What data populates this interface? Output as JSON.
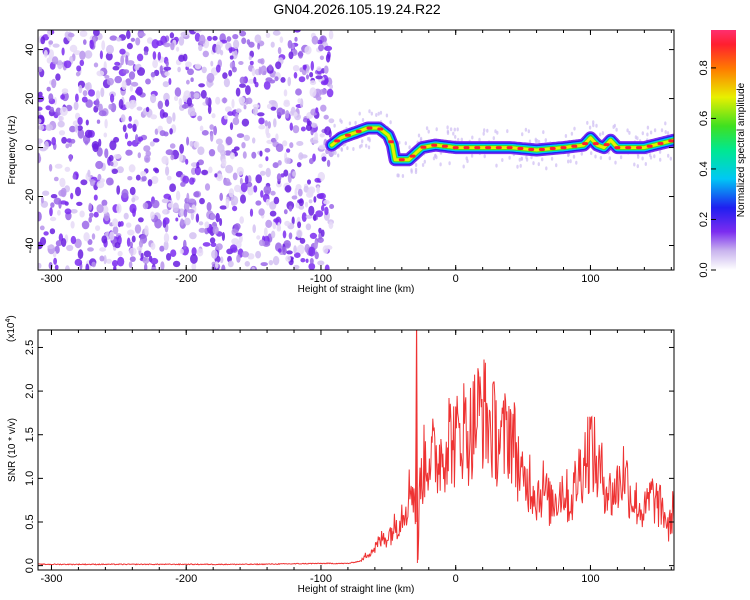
{
  "title": "GN04.2026.105.19.24.R22",
  "chart_data": [
    {
      "type": "heatmap",
      "xlabel": "Height of straight line (km)",
      "ylabel": "Frequency (Hz)",
      "xlim": [
        -310,
        162
      ],
      "ylim": [
        -50,
        48
      ],
      "xticks": [
        -300,
        -200,
        -100,
        0,
        100
      ],
      "yticks": [
        -40,
        -20,
        0,
        20,
        40
      ],
      "colorbar": {
        "label": "Normalized spectral amplitude",
        "range": [
          0,
          0.95
        ],
        "ticks": [
          "0.0",
          "0.2",
          "0.4",
          "0.6",
          "0.8"
        ],
        "colors": [
          "#ffffff",
          "#c9b4ee",
          "#7b2cf0",
          "#1f1ff0",
          "#00c8f5",
          "#00e890",
          "#3fe020",
          "#e8f000",
          "#ff7a00",
          "#ff1f2f",
          "#ff2f6f"
        ]
      },
      "noise_region_x": [
        -310,
        -92
      ],
      "ridge": {
        "x": [
          -92,
          -85,
          -75,
          -65,
          -57,
          -50,
          -47,
          -45,
          -35,
          -25,
          -15,
          0,
          20,
          40,
          60,
          80,
          95,
          100,
          105,
          110,
          115,
          120,
          140,
          162
        ],
        "freq": [
          1,
          4,
          6,
          8,
          8,
          5,
          1,
          -5,
          -5,
          0,
          1,
          0,
          0,
          0,
          -1,
          0,
          1,
          4,
          1,
          0,
          3,
          0,
          0,
          3
        ]
      }
    },
    {
      "type": "line",
      "xlabel": "Height of straight line (km)",
      "ylabel": "SNR (10 * v/v)",
      "scale_label": "(x10",
      "scale_exp": "4",
      "xlim": [
        -310,
        162
      ],
      "ylim": [
        -0.05,
        2.7
      ],
      "xticks": [
        -300,
        -200,
        -100,
        0,
        100
      ],
      "yticks": [
        "0.0",
        "0.5",
        "1.0",
        "1.5",
        "2.0",
        "2.5"
      ],
      "ytick_values": [
        0,
        0.5,
        1.0,
        1.5,
        2.0,
        2.5
      ],
      "series": [
        {
          "color": "#ee3333",
          "x": [
            -310,
            -250,
            -200,
            -150,
            -100,
            -80,
            -70,
            -65,
            -60,
            -55,
            -50,
            -45,
            -40,
            -35,
            -32,
            -30,
            -29,
            -28,
            -27,
            -25,
            -20,
            -15,
            -10,
            -5,
            0,
            5,
            10,
            15,
            20,
            25,
            30,
            35,
            40,
            45,
            50,
            55,
            60,
            65,
            70,
            75,
            80,
            85,
            90,
            95,
            100,
            105,
            110,
            115,
            120,
            125,
            130,
            135,
            140,
            145,
            150,
            155,
            158,
            162
          ],
          "y": [
            0.01,
            0.01,
            0.01,
            0.01,
            0.02,
            0.02,
            0.05,
            0.15,
            0.2,
            0.3,
            0.35,
            0.45,
            0.6,
            0.8,
            1.0,
            0.6,
            2.7,
            0.05,
            0.8,
            1.1,
            1.3,
            1.2,
            1.3,
            1.5,
            1.4,
            1.6,
            1.5,
            1.7,
            1.8,
            1.6,
            1.5,
            1.4,
            1.6,
            1.3,
            0.9,
            1.0,
            0.8,
            0.9,
            0.7,
            0.8,
            0.9,
            0.7,
            1.0,
            1.2,
            1.4,
            1.1,
            1.0,
            0.8,
            0.9,
            1.1,
            0.8,
            0.7,
            0.6,
            0.8,
            0.7,
            0.6,
            0.4,
            0.7
          ]
        }
      ]
    }
  ]
}
